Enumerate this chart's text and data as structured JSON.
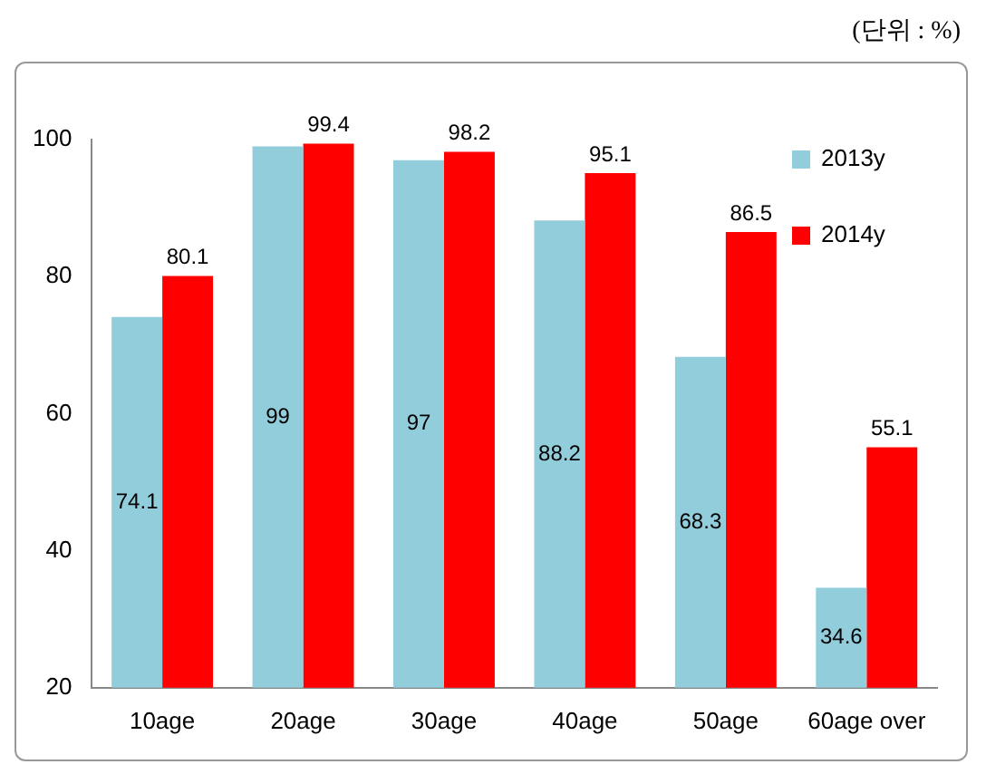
{
  "chart_data": {
    "type": "bar",
    "annotations": [
      "(단위 : %)"
    ],
    "categories": [
      "10age",
      "20age",
      "30age",
      "40age",
      "50age",
      "60age over"
    ],
    "series": [
      {
        "name": "2013y",
        "color": "#92cddc",
        "values": [
          74.1,
          99,
          97,
          88.2,
          68.3,
          34.6
        ]
      },
      {
        "name": "2014y",
        "color": "#ff0000",
        "values": [
          80.1,
          99.4,
          98.2,
          95.1,
          86.5,
          55.1
        ]
      }
    ],
    "ylim": [
      20,
      100
    ],
    "yticks": [
      20,
      40,
      60,
      80,
      100
    ],
    "grid": false,
    "legend": "top right",
    "data_labels": true
  }
}
